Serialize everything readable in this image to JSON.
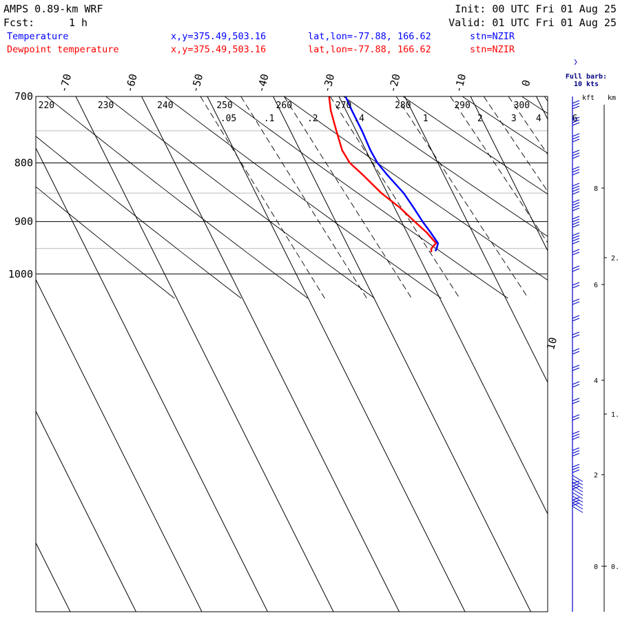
{
  "header": {
    "model": "AMPS 0.89-km WRF",
    "fcst_label": "Fcst:",
    "fcst_value": "1 h",
    "init": "Init: 00 UTC Fri 01 Aug 25",
    "valid": "Valid: 01 UTC Fri 01 Aug 25"
  },
  "legend": [
    {
      "name": "Temperature",
      "xy": "x,y=375.49,503.16",
      "latlon": "lat,lon=-77.88, 166.62",
      "stn": "stn=NZIR",
      "color": "#0000ff"
    },
    {
      "name": "Dewpoint temperature",
      "xy": "x,y=375.49,503.16",
      "latlon": "lat,lon=-77.88, 166.62",
      "stn": "stn=NZIR",
      "color": "#ff0000"
    }
  ],
  "barb_legend": {
    "line1": "Full barb:",
    "line2": "10 kts"
  },
  "height_axis": {
    "kft_label": "kft",
    "km_label": "km",
    "kft_ticks": [
      "8",
      "6",
      "4",
      "2",
      "0"
    ],
    "km_ticks": [
      "2.",
      "1.",
      "0."
    ]
  },
  "chart_data": {
    "type": "line",
    "title": "",
    "xlabel": "",
    "ylabel": "",
    "y_scale": "log-pressure",
    "ylim_hPa": [
      1045,
      700
    ],
    "pressure_ticks": [
      "700",
      "800",
      "900",
      "1000"
    ],
    "isotherm_labels": [
      "-70",
      "-60",
      "-50",
      "-40",
      "-30",
      "-20",
      "-10",
      "0",
      "10"
    ],
    "dry_adiabat_labels": [
      "220",
      "230",
      "240",
      "250",
      "260",
      "270",
      "280",
      "290",
      "300"
    ],
    "mixing_ratio_labels": [
      ".05",
      ".1",
      ".2",
      ".4",
      "1",
      "2",
      "3",
      "4",
      "6"
    ],
    "series": [
      {
        "name": "Temperature",
        "color": "#0000ff",
        "points": [
          [
            700,
            -29
          ],
          [
            720,
            -29.1
          ],
          [
            750,
            -29.1
          ],
          [
            780,
            -29.3
          ],
          [
            800,
            -29.2
          ],
          [
            820,
            -28.6
          ],
          [
            850,
            -27.5
          ],
          [
            875,
            -27.1
          ],
          [
            900,
            -26.8
          ],
          [
            920,
            -26.4
          ],
          [
            940,
            -26.1
          ],
          [
            950,
            -26.7
          ],
          [
            955,
            -27.1
          ]
        ]
      },
      {
        "name": "Dewpoint temperature",
        "color": "#ff0000",
        "points": [
          [
            700,
            -31.5
          ],
          [
            720,
            -32.3
          ],
          [
            750,
            -33.0
          ],
          [
            780,
            -33.6
          ],
          [
            800,
            -33.4
          ],
          [
            820,
            -32.3
          ],
          [
            850,
            -30.9
          ],
          [
            875,
            -29.2
          ],
          [
            900,
            -28.0
          ],
          [
            920,
            -27.0
          ],
          [
            940,
            -26.4
          ],
          [
            950,
            -27.5
          ],
          [
            957,
            -27.8
          ]
        ]
      }
    ]
  },
  "colors": {
    "temperature": "#0000ff",
    "dewpoint": "#ff0000",
    "grid": "#000000",
    "barb": "#0000cc"
  }
}
